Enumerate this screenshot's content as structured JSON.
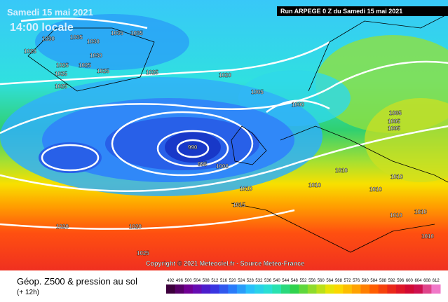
{
  "header": {
    "date": "Samedi 15 mai 2021",
    "time": "14:00 locale",
    "run": "Run ARPEGE 0 Z du Samedi 15 mai 2021"
  },
  "copyright": "Copyright © 2021 Meteociel.fr - Source Meteo-France",
  "footer": {
    "title": "Géop. Z500 & pression au sol",
    "subtitle": "(+ 12h)"
  },
  "isobar_labels": [
    1030,
    1035,
    1035,
    1035,
    1030,
    1025,
    1030,
    1025,
    1025,
    1025,
    1025,
    1025,
    1025,
    1020,
    1005,
    1000,
    1005,
    1005,
    1005,
    990,
    995,
    1000,
    1010,
    1010,
    1010,
    1010,
    1010,
    1015,
    1010,
    1010,
    1020,
    1020,
    1025,
    1010
  ],
  "colorbar": {
    "ticks": [
      492,
      496,
      500,
      504,
      508,
      512,
      516,
      520,
      524,
      528,
      532,
      536,
      540,
      544,
      548,
      552,
      556,
      560,
      564,
      568,
      572,
      576,
      580,
      584,
      588,
      592,
      596,
      600,
      604,
      608,
      612
    ]
  }
}
